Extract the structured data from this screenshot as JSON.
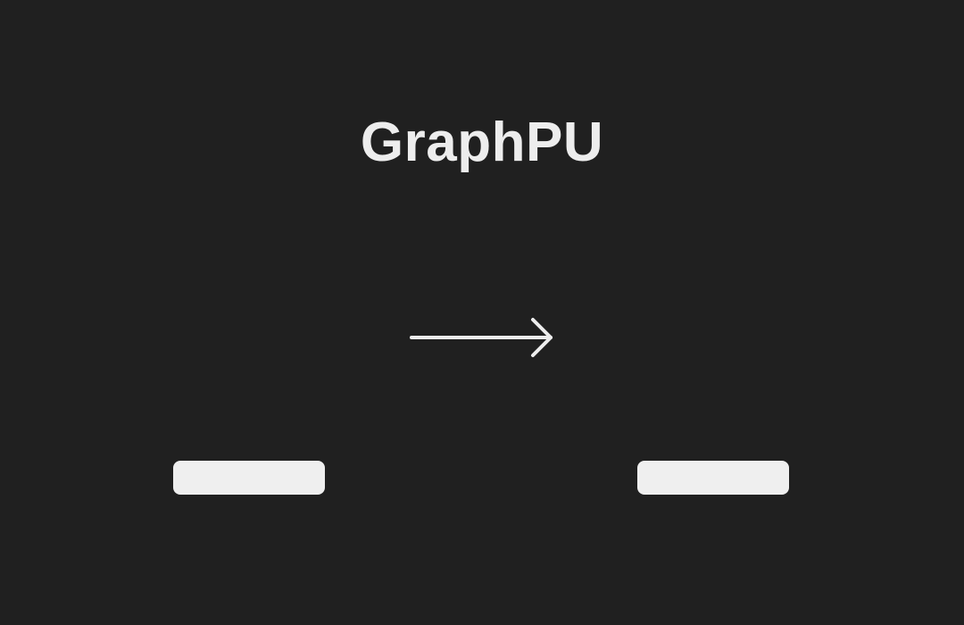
{
  "app": {
    "title": "GraphPU"
  },
  "icons": {
    "arrow": "right-arrow-icon"
  },
  "buttons": {
    "left_label": "",
    "right_label": ""
  },
  "colors": {
    "background": "#202020",
    "foreground": "#ededed",
    "button": "#efefef"
  }
}
